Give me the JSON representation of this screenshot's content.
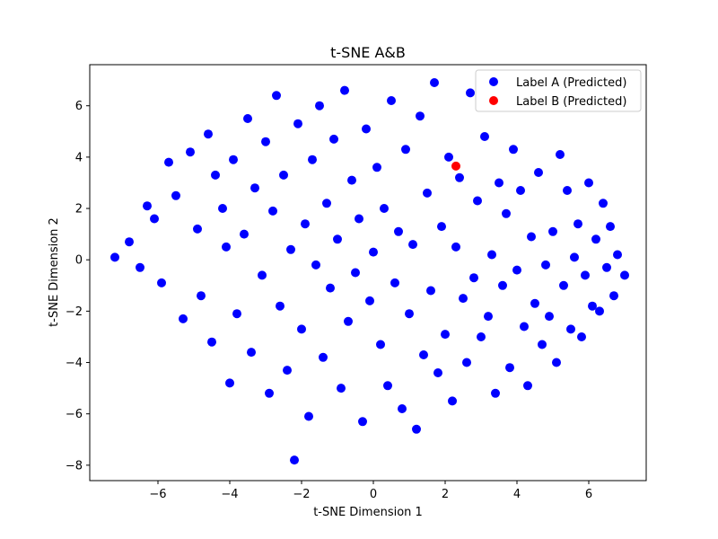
{
  "chart_data": {
    "type": "scatter",
    "title": "t-SNE A&B",
    "xlabel": "t-SNE Dimension 1",
    "ylabel": "t-SNE Dimension 2",
    "xlim": [
      -7.9,
      7.6
    ],
    "ylim": [
      -8.6,
      7.6
    ],
    "xticks": [
      -6,
      -4,
      -2,
      0,
      2,
      4,
      6
    ],
    "yticks": [
      -8,
      -6,
      -4,
      -2,
      0,
      2,
      4,
      6
    ],
    "xtick_labels": [
      "−6",
      "−4",
      "−2",
      "0",
      "2",
      "4",
      "6"
    ],
    "ytick_labels": [
      "−8",
      "−6",
      "−4",
      "−2",
      "0",
      "2",
      "4",
      "6"
    ],
    "legend": {
      "position": "top-right"
    },
    "series": [
      {
        "name": "Label A (Predicted)",
        "color": "#0000ff",
        "points": [
          [
            -7.2,
            0.1
          ],
          [
            -6.8,
            0.7
          ],
          [
            -6.5,
            -0.3
          ],
          [
            -6.3,
            2.1
          ],
          [
            -6.1,
            1.6
          ],
          [
            -5.9,
            -0.9
          ],
          [
            -5.7,
            3.8
          ],
          [
            -5.5,
            2.5
          ],
          [
            -5.3,
            -2.3
          ],
          [
            -5.1,
            4.2
          ],
          [
            -4.9,
            1.2
          ],
          [
            -4.8,
            -1.4
          ],
          [
            -4.6,
            4.9
          ],
          [
            -4.5,
            -3.2
          ],
          [
            -4.4,
            3.3
          ],
          [
            -4.2,
            2.0
          ],
          [
            -4.1,
            0.5
          ],
          [
            -4.0,
            -4.8
          ],
          [
            -3.9,
            3.9
          ],
          [
            -3.8,
            -2.1
          ],
          [
            -3.6,
            1.0
          ],
          [
            -3.5,
            5.5
          ],
          [
            -3.4,
            -3.6
          ],
          [
            -3.3,
            2.8
          ],
          [
            -3.1,
            -0.6
          ],
          [
            -3.0,
            4.6
          ],
          [
            -2.9,
            -5.2
          ],
          [
            -2.8,
            1.9
          ],
          [
            -2.7,
            6.4
          ],
          [
            -2.6,
            -1.8
          ],
          [
            -2.5,
            3.3
          ],
          [
            -2.4,
            -4.3
          ],
          [
            -2.3,
            0.4
          ],
          [
            -2.2,
            -7.8
          ],
          [
            -2.1,
            5.3
          ],
          [
            -2.0,
            -2.7
          ],
          [
            -1.9,
            1.4
          ],
          [
            -1.8,
            -6.1
          ],
          [
            -1.7,
            3.9
          ],
          [
            -1.6,
            -0.2
          ],
          [
            -1.5,
            6.0
          ],
          [
            -1.4,
            -3.8
          ],
          [
            -1.3,
            2.2
          ],
          [
            -1.2,
            -1.1
          ],
          [
            -1.1,
            4.7
          ],
          [
            -1.0,
            0.8
          ],
          [
            -0.9,
            -5.0
          ],
          [
            -0.8,
            6.6
          ],
          [
            -0.7,
            -2.4
          ],
          [
            -0.6,
            3.1
          ],
          [
            -0.5,
            -0.5
          ],
          [
            -0.4,
            1.6
          ],
          [
            -0.3,
            -6.3
          ],
          [
            -0.2,
            5.1
          ],
          [
            -0.1,
            -1.6
          ],
          [
            0.0,
            0.3
          ],
          [
            0.1,
            3.6
          ],
          [
            0.2,
            -3.3
          ],
          [
            0.3,
            2.0
          ],
          [
            0.4,
            -4.9
          ],
          [
            0.5,
            6.2
          ],
          [
            0.6,
            -0.9
          ],
          [
            0.7,
            1.1
          ],
          [
            0.8,
            -5.8
          ],
          [
            0.9,
            4.3
          ],
          [
            1.0,
            -2.1
          ],
          [
            1.1,
            0.6
          ],
          [
            1.2,
            -6.6
          ],
          [
            1.3,
            5.6
          ],
          [
            1.4,
            -3.7
          ],
          [
            1.5,
            2.6
          ],
          [
            1.6,
            -1.2
          ],
          [
            1.7,
            6.9
          ],
          [
            1.8,
            -4.4
          ],
          [
            1.9,
            1.3
          ],
          [
            2.0,
            -2.9
          ],
          [
            2.1,
            4.0
          ],
          [
            2.2,
            -5.5
          ],
          [
            2.3,
            0.5
          ],
          [
            2.4,
            3.2
          ],
          [
            2.5,
            -1.5
          ],
          [
            2.6,
            -4.0
          ],
          [
            2.7,
            6.5
          ],
          [
            2.8,
            -0.7
          ],
          [
            2.9,
            2.3
          ],
          [
            3.0,
            -3.0
          ],
          [
            3.1,
            4.8
          ],
          [
            3.2,
            -2.2
          ],
          [
            3.3,
            0.2
          ],
          [
            3.4,
            -5.2
          ],
          [
            3.5,
            3.0
          ],
          [
            3.6,
            -1.0
          ],
          [
            3.7,
            1.8
          ],
          [
            3.8,
            -4.2
          ],
          [
            3.9,
            4.3
          ],
          [
            4.0,
            -0.4
          ],
          [
            4.1,
            2.7
          ],
          [
            4.2,
            -2.6
          ],
          [
            4.3,
            -4.9
          ],
          [
            4.4,
            0.9
          ],
          [
            4.5,
            -1.7
          ],
          [
            4.6,
            3.4
          ],
          [
            4.7,
            -3.3
          ],
          [
            4.8,
            -0.2
          ],
          [
            4.9,
            -2.2
          ],
          [
            5.0,
            1.1
          ],
          [
            5.1,
            -4.0
          ],
          [
            5.2,
            4.1
          ],
          [
            5.3,
            -1.0
          ],
          [
            5.4,
            2.7
          ],
          [
            5.5,
            -2.7
          ],
          [
            5.6,
            0.1
          ],
          [
            5.7,
            1.4
          ],
          [
            5.8,
            -3.0
          ],
          [
            5.9,
            -0.6
          ],
          [
            6.0,
            3.0
          ],
          [
            6.1,
            -1.8
          ],
          [
            6.2,
            0.8
          ],
          [
            6.3,
            -2.0
          ],
          [
            6.4,
            2.2
          ],
          [
            6.5,
            -0.3
          ],
          [
            6.6,
            1.3
          ],
          [
            6.7,
            -1.4
          ],
          [
            6.8,
            0.2
          ],
          [
            7.0,
            -0.6
          ]
        ]
      },
      {
        "name": "Label B (Predicted)",
        "color": "#ff0000",
        "points": [
          [
            2.3,
            3.65
          ]
        ]
      }
    ]
  }
}
